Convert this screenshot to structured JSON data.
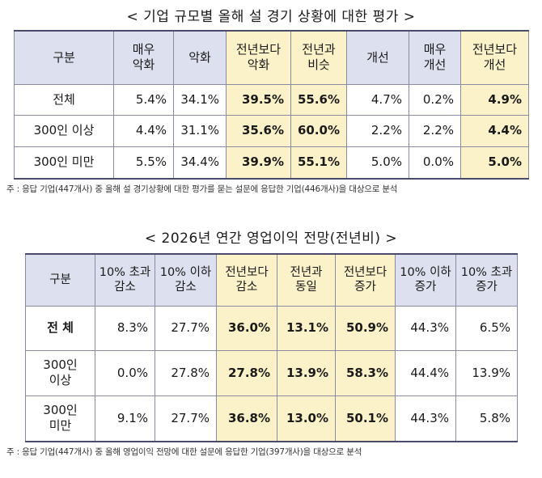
{
  "table1": {
    "title": "< 기업 규모별 올해 설 경기 상황에 대한 평가 >",
    "headers": [
      "구분",
      "매우\n악화",
      "악화",
      "전년보다\n악화",
      "전년과\n비슷",
      "개선",
      "매우\n개선",
      "전년보다\n개선"
    ],
    "rows": [
      {
        "label": "전체",
        "values": [
          "5.4%",
          "34.1%",
          "39.5%",
          "55.6%",
          "4.7%",
          "0.2%",
          "4.9%"
        ]
      },
      {
        "label": "300인 이상",
        "values": [
          "4.4%",
          "31.1%",
          "35.6%",
          "60.0%",
          "2.2%",
          "2.2%",
          "4.4%"
        ]
      },
      {
        "label": "300인 미만",
        "values": [
          "5.5%",
          "34.4%",
          "39.9%",
          "55.1%",
          "5.0%",
          "0.0%",
          "5.0%"
        ]
      }
    ],
    "note": "주 : 응답 기업(447개사) 중 올해 설 경기상황에 대한 평가를 묻는 설문에 응답한 기업(446개사)을 대상으로 분석"
  },
  "table2": {
    "title": "< 2026년 연간 영업이익 전망(전년비) >",
    "headers": [
      "구분",
      "10% 초과\n감소",
      "10% 이하\n감소",
      "전년보다\n감소",
      "전년과\n동일",
      "전년보다\n증가",
      "10% 이하\n증가",
      "10% 초과\n증가"
    ],
    "rows": [
      {
        "label": "전 체",
        "values": [
          "8.3%",
          "27.7%",
          "36.0%",
          "13.1%",
          "50.9%",
          "44.3%",
          "6.5%"
        ]
      },
      {
        "label": "300인\n이상",
        "values": [
          "0.0%",
          "27.8%",
          "27.8%",
          "13.9%",
          "58.3%",
          "44.4%",
          "13.9%"
        ]
      },
      {
        "label": "300인\n미만",
        "values": [
          "9.1%",
          "27.7%",
          "36.8%",
          "13.0%",
          "50.1%",
          "44.3%",
          "5.8%"
        ]
      }
    ],
    "note": "주 : 응답 기업(447개사) 중 올해 영업이익 전망에 대한 설문에 응답한 기업(397개사)을 대상으로 분석"
  }
}
